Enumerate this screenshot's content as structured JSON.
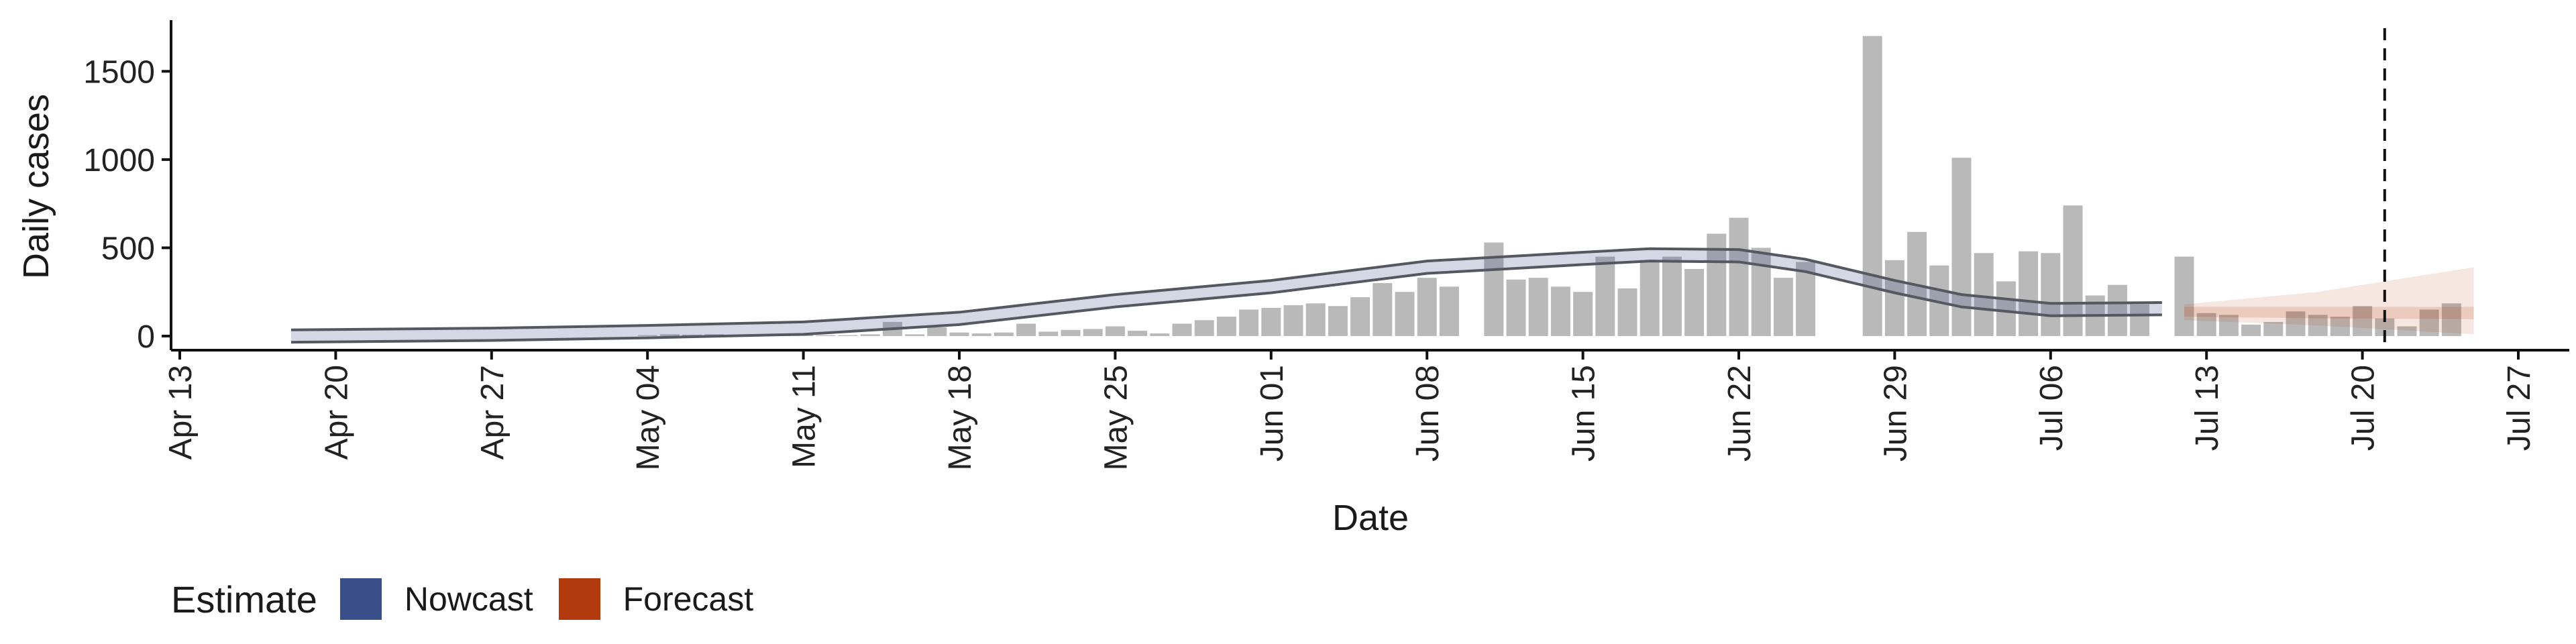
{
  "chart_data": {
    "type": "bar",
    "ylabel": "Daily cases",
    "xlabel": "Date",
    "ylim": [
      -80,
      1790
    ],
    "y_ticks": [
      0,
      500,
      1000,
      1500
    ],
    "x_ticks": [
      {
        "date": "2020-04-13",
        "label": "Apr 13"
      },
      {
        "date": "2020-04-20",
        "label": "Apr 20"
      },
      {
        "date": "2020-04-27",
        "label": "Apr 27"
      },
      {
        "date": "2020-05-04",
        "label": "May 04"
      },
      {
        "date": "2020-05-11",
        "label": "May 11"
      },
      {
        "date": "2020-05-18",
        "label": "May 18"
      },
      {
        "date": "2020-05-25",
        "label": "May 25"
      },
      {
        "date": "2020-06-01",
        "label": "Jun 01"
      },
      {
        "date": "2020-06-08",
        "label": "Jun 08"
      },
      {
        "date": "2020-06-15",
        "label": "Jun 15"
      },
      {
        "date": "2020-06-22",
        "label": "Jun 22"
      },
      {
        "date": "2020-06-29",
        "label": "Jun 29"
      },
      {
        "date": "2020-07-06",
        "label": "Jul 06"
      },
      {
        "date": "2020-07-13",
        "label": "Jul 13"
      },
      {
        "date": "2020-07-20",
        "label": "Jul 20"
      },
      {
        "date": "2020-07-27",
        "label": "Jul 27"
      }
    ],
    "xlim": [
      "2020-04-13",
      "2020-07-30"
    ],
    "vline_date": "2020-07-21",
    "grid": false,
    "legend_position": "bottom-left",
    "bars": {
      "start_date": "2020-04-18",
      "values": [
        0,
        0,
        0,
        0,
        0,
        0,
        0,
        0,
        0,
        0,
        0,
        0,
        0,
        0,
        0,
        0,
        5,
        10,
        8,
        10,
        5,
        8,
        5,
        5,
        5,
        5,
        10,
        80,
        10,
        50,
        20,
        15,
        20,
        70,
        25,
        35,
        40,
        55,
        30,
        15,
        70,
        90,
        110,
        150,
        160,
        175,
        185,
        170,
        220,
        300,
        250,
        330,
        280,
        0,
        530,
        320,
        330,
        280,
        250,
        450,
        270,
        430,
        450,
        380,
        580,
        670,
        500,
        330,
        420,
        0,
        0,
        1700,
        430,
        590,
        400,
        1010,
        470,
        310,
        480,
        470,
        740,
        230,
        290,
        180,
        0,
        450,
        130,
        120,
        65,
        80,
        140,
        120,
        110,
        170,
        100,
        55,
        150,
        185
      ]
    },
    "estimate_series": [
      {
        "name": "Nowcast",
        "color": "#3a4f8a",
        "points": [
          [
            "2020-04-18",
            0
          ],
          [
            "2020-04-27",
            10
          ],
          [
            "2020-05-04",
            25
          ],
          [
            "2020-05-11",
            45
          ],
          [
            "2020-05-18",
            100
          ],
          [
            "2020-05-25",
            200
          ],
          [
            "2020-06-01",
            280
          ],
          [
            "2020-06-08",
            390
          ],
          [
            "2020-06-15",
            440
          ],
          [
            "2020-06-18",
            460
          ],
          [
            "2020-06-22",
            455
          ],
          [
            "2020-06-25",
            400
          ],
          [
            "2020-06-29",
            280
          ],
          [
            "2020-07-02",
            200
          ],
          [
            "2020-07-06",
            150
          ],
          [
            "2020-07-11",
            155
          ]
        ],
        "band_halfwidth": 35
      },
      {
        "name": "Forecast",
        "color": "#b33a0c",
        "points": [
          [
            "2020-07-12",
            140
          ],
          [
            "2020-07-18",
            130
          ],
          [
            "2020-07-25",
            125
          ]
        ],
        "outer_lower": [
          [
            "2020-07-12",
            90
          ],
          [
            "2020-07-18",
            60
          ],
          [
            "2020-07-25",
            10
          ]
        ],
        "outer_upper": [
          [
            "2020-07-12",
            180
          ],
          [
            "2020-07-18",
            250
          ],
          [
            "2020-07-25",
            390
          ]
        ],
        "inner_lower": [
          [
            "2020-07-12",
            110
          ],
          [
            "2020-07-18",
            100
          ],
          [
            "2020-07-25",
            95
          ]
        ],
        "inner_upper": [
          [
            "2020-07-12",
            165
          ],
          [
            "2020-07-18",
            165
          ],
          [
            "2020-07-25",
            165
          ]
        ]
      }
    ]
  },
  "legend": {
    "title": "Estimate",
    "items": [
      {
        "label": "Nowcast",
        "color": "#3a4f8a"
      },
      {
        "label": "Forecast",
        "color": "#b33a0c"
      }
    ]
  }
}
